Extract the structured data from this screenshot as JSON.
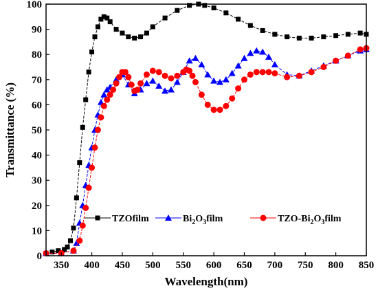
{
  "chart_data": {
    "type": "line",
    "xlabel": "Wavelength(nm)",
    "ylabel": "Transmittance (%)",
    "xlim": [
      325,
      850
    ],
    "ylim": [
      0,
      100
    ],
    "xticks": [
      350,
      400,
      450,
      500,
      550,
      600,
      650,
      700,
      750,
      800,
      850
    ],
    "yticks": [
      0,
      10,
      20,
      30,
      40,
      50,
      60,
      70,
      80,
      90,
      100
    ],
    "legend_position": "lower-right",
    "grid": false,
    "series": [
      {
        "name": "TZOfilm",
        "legend_label": {
          "base": "TZOfilm",
          "parts": []
        },
        "marker": "square",
        "color": "#000000",
        "x": [
          325,
          335,
          345,
          355,
          360,
          365,
          370,
          375,
          380,
          385,
          390,
          395,
          400,
          405,
          410,
          415,
          420,
          425,
          430,
          440,
          450,
          460,
          470,
          480,
          490,
          500,
          520,
          540,
          560,
          575,
          585,
          600,
          620,
          640,
          660,
          680,
          700,
          720,
          740,
          760,
          780,
          800,
          820,
          840,
          850
        ],
        "y": [
          1,
          1.5,
          2,
          2.5,
          3.5,
          6,
          11,
          23,
          37,
          51,
          62,
          73,
          81,
          87,
          91,
          94,
          95,
          94.5,
          93,
          90,
          88.5,
          87,
          86.5,
          87,
          88.5,
          91,
          94.5,
          97.5,
          99.5,
          100,
          99.5,
          98.5,
          96.5,
          94,
          91.5,
          89.5,
          88,
          87,
          86.5,
          86.5,
          87,
          87.5,
          88,
          88.5,
          88
        ]
      },
      {
        "name": "Bi2O3film",
        "legend_label": {
          "base": "Bi",
          "parts": [
            [
              "2",
              "sub"
            ],
            [
              "O",
              "base"
            ],
            [
              "3",
              "sub"
            ],
            [
              "film",
              "base"
            ]
          ]
        },
        "marker": "triangle",
        "color": "#0000ff",
        "x": [
          325,
          350,
          370,
          375,
          380,
          385,
          390,
          395,
          400,
          405,
          410,
          415,
          420,
          425,
          430,
          440,
          450,
          460,
          470,
          480,
          490,
          500,
          510,
          520,
          530,
          540,
          550,
          560,
          570,
          580,
          590,
          600,
          610,
          620,
          630,
          640,
          650,
          660,
          670,
          680,
          690,
          700,
          720,
          740,
          760,
          780,
          800,
          820,
          840,
          850
        ],
        "y": [
          1,
          1,
          2,
          5,
          13,
          20,
          28,
          36,
          43,
          50,
          56,
          61,
          64,
          66,
          67,
          70,
          72,
          68,
          64.5,
          66,
          68.5,
          69.5,
          67.5,
          65.5,
          66,
          69,
          73,
          77.5,
          78.5,
          76,
          72,
          69.5,
          69,
          70,
          72.5,
          75.5,
          78.5,
          80.5,
          81.5,
          81,
          79,
          76,
          72,
          71.5,
          73.5,
          75.5,
          77.5,
          79.5,
          81.5,
          82
        ]
      },
      {
        "name": "TZO-Bi2O3film",
        "legend_label": {
          "base": "TZO-Bi",
          "parts": [
            [
              "2",
              "sub"
            ],
            [
              "O",
              "base"
            ],
            [
              "3",
              "sub"
            ],
            [
              "film",
              "base"
            ]
          ]
        },
        "marker": "circle",
        "color": "#ff0000",
        "x": [
          325,
          350,
          370,
          380,
          385,
          390,
          395,
          400,
          405,
          410,
          415,
          420,
          425,
          430,
          435,
          440,
          445,
          450,
          455,
          460,
          465,
          470,
          475,
          480,
          490,
          500,
          510,
          520,
          530,
          540,
          550,
          555,
          560,
          565,
          570,
          580,
          590,
          600,
          610,
          620,
          630,
          640,
          650,
          660,
          670,
          680,
          690,
          700,
          720,
          740,
          760,
          780,
          800,
          820,
          840,
          850
        ],
        "y": [
          1,
          1,
          2,
          6,
          12,
          19,
          27,
          35,
          43,
          50,
          55,
          59.5,
          62,
          64,
          66,
          68.5,
          71,
          73,
          73,
          71,
          68,
          65.5,
          66,
          68.5,
          72,
          73.5,
          73,
          71.5,
          70.5,
          71.5,
          73,
          74,
          73.5,
          71.5,
          69,
          64,
          60,
          58,
          58,
          59.5,
          62.5,
          66.5,
          70,
          72,
          73,
          73,
          73,
          72.5,
          71,
          71.5,
          73,
          75,
          77.5,
          79.5,
          82,
          82.5
        ]
      }
    ]
  }
}
